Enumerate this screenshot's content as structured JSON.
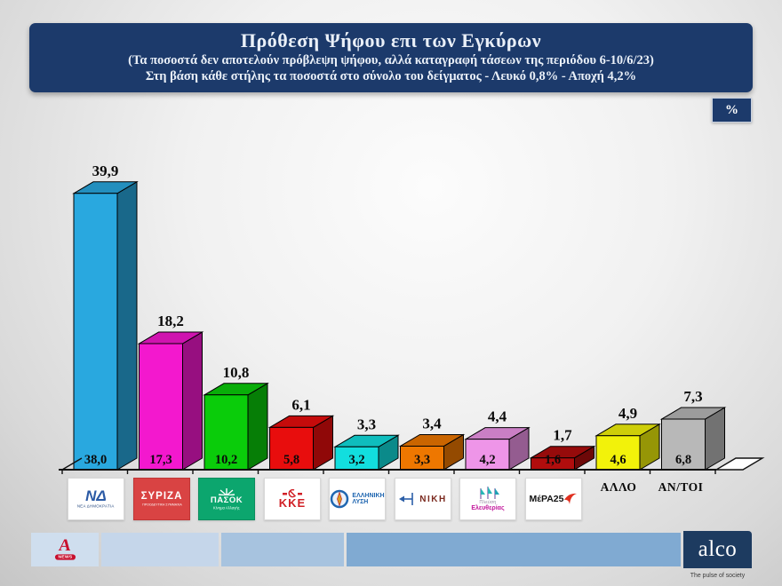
{
  "header": {
    "title": "Πρόθεση Ψήφου επι των Εγκύρων",
    "subtitle1": "(Τα ποσοστά δεν αποτελούν πρόβλεψη ψήφου, αλλά καταγραφή τάσεων της περιόδου  6-10/6/23)",
    "subtitle2": "Στη βάση κάθε στήλης τα ποσοστά στο σύνολο του δείγματος - Λευκό 0,8% - Αποχή 4,2%"
  },
  "percent_badge": {
    "label": "%"
  },
  "chart_data": {
    "type": "bar",
    "title": "Πρόθεση Ψήφου επι των Εγκύρων",
    "unit": "%",
    "xlabel": "",
    "ylabel": "",
    "ylim": [
      0,
      42
    ],
    "grid": false,
    "legend": false,
    "categories": [
      "ΝΕΑ ΔΗΜΟΚΡΑΤΙΑ",
      "ΣΥΡΙΖΑ",
      "ΠΑΣΟΚ - Κίνημα Αλλαγής",
      "ΚΚΕ",
      "ΕΛΛΗΝΙΚΗ ΛΥΣΗ",
      "ΝΙΚΗ",
      "ΠΛΕΥΣΗ ΕΛΕΥΘΕΡΙΑΣ",
      "ΜέΡΑ25",
      "ΑΛΛΟ",
      "ΑΝ/ΤΟΙ"
    ],
    "series": [
      {
        "name": "Επί των εγκύρων (%)",
        "values": [
          39.9,
          18.2,
          10.8,
          6.1,
          3.3,
          3.4,
          4.4,
          1.7,
          4.9,
          7.3
        ],
        "labels": [
          "39,9",
          "18,2",
          "10,8",
          "6,1",
          "3,3",
          "3,4",
          "4,4",
          "1,7",
          "4,9",
          "7,3"
        ]
      },
      {
        "name": "Στο σύνολο του δείγματος (%)",
        "values": [
          38.0,
          17.3,
          10.2,
          5.8,
          3.2,
          3.3,
          4.2,
          1.6,
          4.6,
          6.8
        ],
        "labels": [
          "38,0",
          "17,3",
          "10,2",
          "5,8",
          "3,2",
          "3,3",
          "4,2",
          "1,6",
          "4,6",
          "6,8"
        ]
      }
    ],
    "colors": [
      "#29a8df",
      "#f318ce",
      "#0acc0a",
      "#e80d0d",
      "#12dede",
      "#ee7700",
      "#ee95e8",
      "#b00d0d",
      "#f2f20a",
      "#b8b8b8"
    ]
  },
  "logos": {
    "nd": {
      "main": "ΝΔ",
      "sub": "ΝΕΑ ΔΗΜΟΚΡΑΤΙΑ"
    },
    "syriza": {
      "main": "ΣΥΡΙΖΑ",
      "sub": "ΠΡΟΟΔΕΥΤΙΚΗ ΣΥΜΜΑΧΙΑ"
    },
    "pasok": {
      "main": "ΠΑΣΟΚ",
      "sub": "Κίνημα Αλλαγής"
    },
    "kke": {
      "main": "ΚΚΕ"
    },
    "ellysi": {
      "line1": "ΕΛΛΗΝΙΚΗ",
      "line2": "ΛΥΣΗ"
    },
    "niki": {
      "main": "ΝΙΚΗ"
    },
    "plefsi": {
      "line1": "Πλεύση",
      "line2": "Ελευθερίας"
    },
    "mera25": {
      "main": "ΜέΡΑ25"
    }
  },
  "footer": {
    "alpha_news": {
      "letter": "A",
      "label": "NEWS"
    },
    "alco": {
      "name": "alco",
      "tagline": "The pulse of society"
    }
  }
}
